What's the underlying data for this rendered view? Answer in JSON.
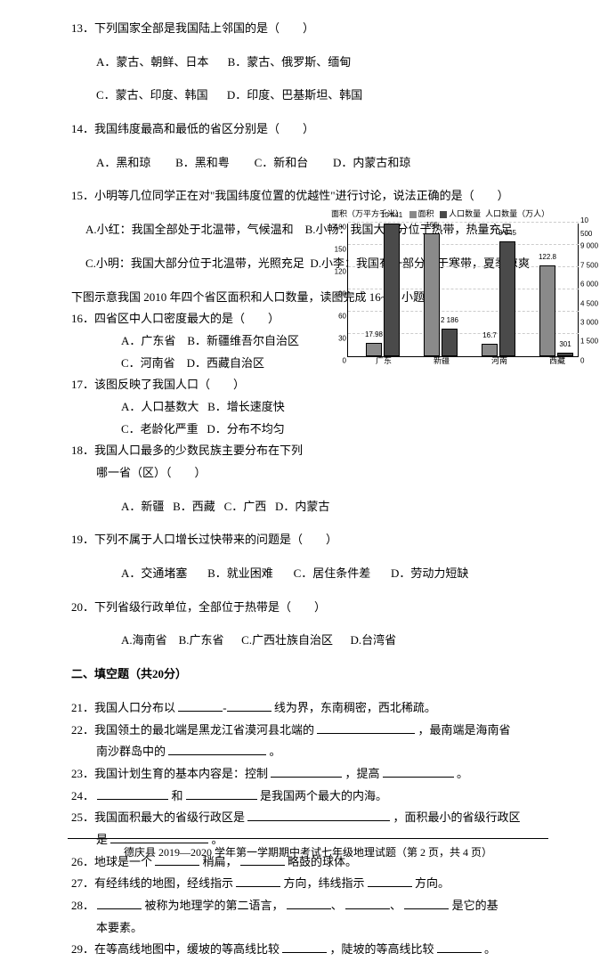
{
  "q13": {
    "stem": "13．下列国家全部是我国陆上邻国的是（　　）",
    "A": "A．蒙古、朝鲜、日本",
    "B": "B．蒙古、俄罗斯、缅甸",
    "C": "C．蒙古、印度、韩国",
    "D": "D．印度、巴基斯坦、韩国"
  },
  "q14": {
    "stem": "14．我国纬度最高和最低的省区分别是（　　）",
    "A": "A．黑和琼",
    "B": "B．黑和粤",
    "C": "C．新和台",
    "D": "D．内蒙古和琼"
  },
  "q15": {
    "stem": "15．小明等几位同学正在对\"我国纬度位置的优越性\"进行讨论，说法正确的是（　　）",
    "A": "A.小红：我国全部处于北温带，气候温和",
    "B": "B.小畅：我国大部分位于热带，热量充足",
    "C": "C.小明：我国大部分位于北温带，光照充足",
    "D": "D.小李：我国有一部分位于寒带，夏季凉爽"
  },
  "lead1617": "下图示意我国 2010 年四个省区面积和人口数量，读图完成 16~17 小题。",
  "q16": {
    "stem": "16．四省区中人口密度最大的是（　　）",
    "A": "A．广东省",
    "B": "B．新疆维吾尔自治区",
    "C": "C．河南省",
    "D": "D．西藏自治区"
  },
  "q17": {
    "stem": "17．该图反映了我国人口（　　）",
    "A": "A．人口基数大",
    "B": "B．增长速度快",
    "C": "C．老龄化严重",
    "D": "D．分布不均匀"
  },
  "q18": {
    "stem": "18．我国人口最多的少数民族主要分布在下列",
    "stem2": "哪一省（区）（　　）",
    "A": "A．新疆",
    "B": "B．西藏",
    "C": "C．广西",
    "D": "D．内蒙古"
  },
  "q19": {
    "stem": "19．下列不属于人口增长过快带来的问题是（　　）",
    "A": "A．交通堵塞",
    "B": "B．就业困难",
    "C": "C．居住条件差",
    "D": "D．劳动力短缺"
  },
  "q20": {
    "stem": "20．下列省级行政单位，全部位于热带是（　　）",
    "A": "A.海南省",
    "B": "B.广东省",
    "C": "C.广西壮族自治区",
    "D": "D.台湾省"
  },
  "section2": "二、填空题（共20分）",
  "q21": {
    "a": "21．我国人口分布以",
    "b": "线为界，东南稠密，西北稀疏。"
  },
  "q22": {
    "a": "22．我国领土的最北端是黑龙江省漠河县北端的",
    "b": "，最南端是海南省",
    "c": "南沙群岛中的",
    "d": "。"
  },
  "q23": {
    "a": "23．我国计划生育的基本内容是：控制",
    "b": "，提高",
    "c": "。"
  },
  "q24": {
    "a": "24．",
    "b": "和",
    "c": "是我国两个最大的内海。"
  },
  "q25": {
    "a": "25．我国面积最大的省级行政区是",
    "b": "，面积最小的省级行政区",
    "c": "是",
    "d": "。"
  },
  "q26": {
    "a": "26．地球是一个",
    "b": "稍扁，",
    "c": "略鼓的球体。"
  },
  "q27": {
    "a": "27．有经纬线的地图，经线指示",
    "b": "方向，纬线指示",
    "c": "方向。"
  },
  "q28": {
    "a": "28．",
    "b": "被称为地理学的第二语言，",
    "c": "是它的基",
    "d": "本要素。"
  },
  "q29": {
    "a": "29．在等高线地图中，缓坡的等高线比较",
    "b": "，陡坡的等高线比较",
    "c": "。"
  },
  "footer": "德庆县 2019—2020 学年第一学期期中考试七年级地理试题（第 2 页，共 4 页）",
  "chart": {
    "titleLeft": "面积（万平方千米）",
    "legendArea": "面积",
    "legendPop": "人口数量",
    "titleRight": "人口数量（万人）",
    "leftMax": 180,
    "rightMax": 10500,
    "leftTicks": [
      0,
      30,
      60,
      90,
      120,
      150,
      180
    ],
    "rightTicks": [
      0,
      1500,
      3000,
      4500,
      6000,
      7500,
      9000,
      10500
    ],
    "colors": {
      "area": "#8a8a8a",
      "pop": "#4a4a4a",
      "border": "#000"
    },
    "provinces": [
      {
        "name": "广东",
        "area": 17.98,
        "pop": 10441
      },
      {
        "name": "新疆",
        "area": 166,
        "pop": 2186
      },
      {
        "name": "河南",
        "area": 16.7,
        "pop": 9045
      },
      {
        "name": "西藏",
        "area": 122.8,
        "pop": 301
      }
    ],
    "xPositions": [
      20,
      85,
      150,
      215
    ]
  }
}
